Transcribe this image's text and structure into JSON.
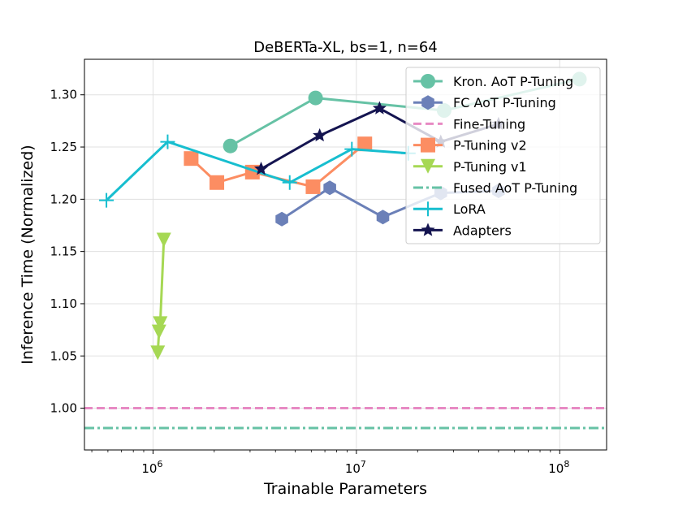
{
  "chart_data": {
    "type": "line",
    "title": "DeBERTa-XL, bs=1, n=64",
    "xlabel": "Trainable Parameters",
    "ylabel": "Inference Time (Normalized)",
    "xscale": "log",
    "xlim": [
      460000,
      170000000
    ],
    "ylim": [
      0.96,
      1.334
    ],
    "grid": true,
    "legend_position": "top-right",
    "xticks": [
      {
        "value": 1000000,
        "base": "10",
        "exp": "6"
      },
      {
        "value": 10000000,
        "base": "10",
        "exp": "7"
      },
      {
        "value": 100000000,
        "base": "10",
        "exp": "8"
      }
    ],
    "yticks": [
      {
        "value": 1.0,
        "label": "1.00"
      },
      {
        "value": 1.05,
        "label": "1.05"
      },
      {
        "value": 1.1,
        "label": "1.10"
      },
      {
        "value": 1.15,
        "label": "1.15"
      },
      {
        "value": 1.2,
        "label": "1.20"
      },
      {
        "value": 1.25,
        "label": "1.25"
      },
      {
        "value": 1.3,
        "label": "1.30"
      }
    ],
    "series": [
      {
        "name": "Kron. AoT P-Tuning",
        "color": "#66c2a5",
        "marker": "circle",
        "style": "solid",
        "x": [
          2400000,
          6300000,
          27000000,
          125000000
        ],
        "y": [
          1.251,
          1.297,
          1.285,
          1.315
        ]
      },
      {
        "name": "FC AoT P-Tuning",
        "color": "#6b80b8",
        "marker": "hexagon",
        "style": "solid",
        "x": [
          4300000,
          7400000,
          13500000,
          26000000,
          50000000
        ],
        "y": [
          1.181,
          1.211,
          1.183,
          1.206,
          1.208
        ]
      },
      {
        "name": "Fine-Tuning",
        "color": "#e78ac3",
        "marker": "none",
        "style": "hline-dashed",
        "y": 1.0
      },
      {
        "name": "P-Tuning v2",
        "color": "#fc8d62",
        "marker": "square",
        "style": "solid",
        "x": [
          1540000,
          2060000,
          3080000,
          6120000,
          11000000
        ],
        "y": [
          1.239,
          1.216,
          1.226,
          1.212,
          1.253
        ]
      },
      {
        "name": "P-Tuning v1",
        "color": "#a6d854",
        "marker": "triangle-down",
        "style": "solid",
        "x": [
          1130000,
          1085000,
          1070000,
          1055000
        ],
        "y": [
          1.161,
          1.081,
          1.073,
          1.053
        ]
      },
      {
        "name": "Fused AoT P-Tuning",
        "color": "#66c2a5",
        "marker": "none",
        "style": "hline-dashdot",
        "y": 0.981
      },
      {
        "name": "LoRA",
        "color": "#17becf",
        "marker": "plus",
        "style": "solid",
        "x": [
          590000,
          1180000,
          4700000,
          9500000,
          18000000
        ],
        "y": [
          1.199,
          1.255,
          1.216,
          1.248,
          1.244
        ]
      },
      {
        "name": "Adapters",
        "color": "#141450",
        "marker": "star",
        "style": "solid",
        "x": [
          3400000,
          6600000,
          13000000,
          26000000,
          50000000
        ],
        "y": [
          1.229,
          1.261,
          1.287,
          1.255,
          1.272
        ]
      }
    ]
  }
}
